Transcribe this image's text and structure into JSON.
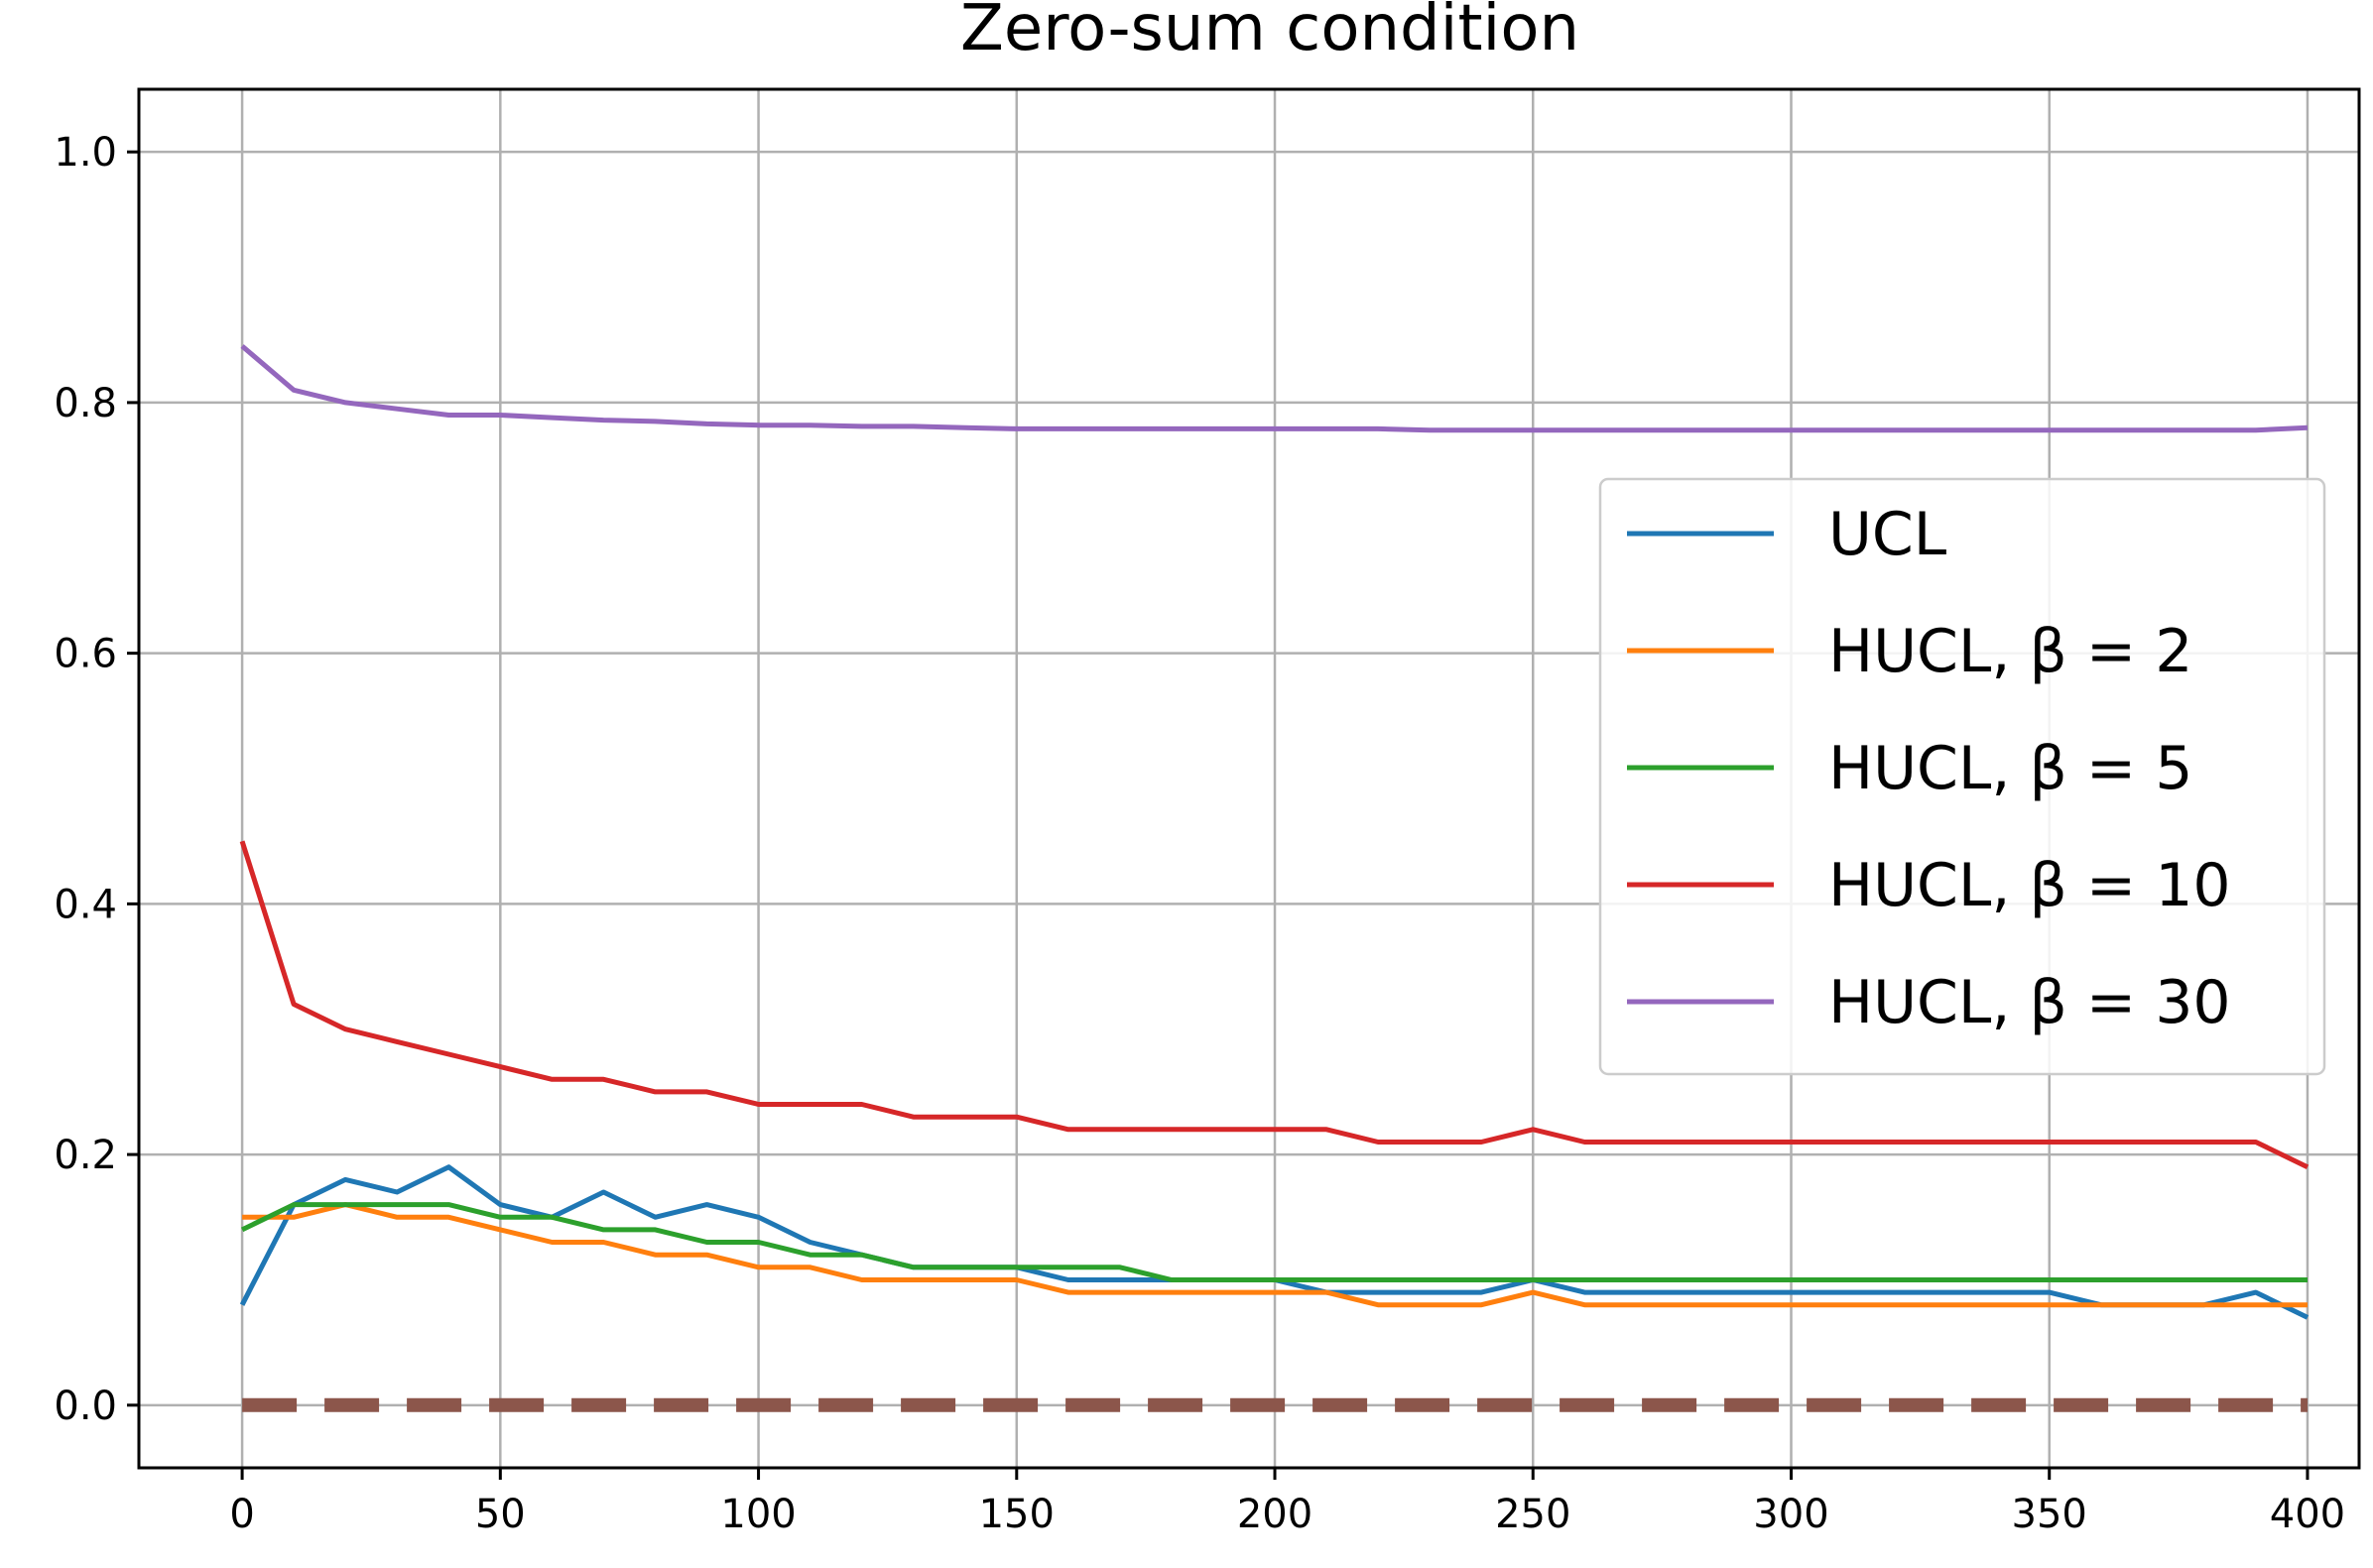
{
  "chart_data": {
    "type": "line",
    "title": "Zero-sum condition",
    "xlabel": "",
    "ylabel": "",
    "xlim": [
      -20,
      410
    ],
    "ylim": [
      -0.05,
      1.05
    ],
    "grid": true,
    "legend_placement": "center-right",
    "x_ticks": [
      0,
      50,
      100,
      150,
      200,
      250,
      300,
      350,
      400
    ],
    "y_ticks": [
      0.0,
      0.2,
      0.4,
      0.6,
      0.8,
      1.0
    ],
    "x_tick_labels": [
      "0",
      "50",
      "100",
      "150",
      "200",
      "250",
      "300",
      "350",
      "400"
    ],
    "y_tick_labels": [
      "0.0",
      "0.2",
      "0.4",
      "0.6",
      "0.8",
      "1.0"
    ],
    "x": [
      0,
      10,
      20,
      30,
      40,
      50,
      60,
      70,
      80,
      90,
      100,
      110,
      120,
      130,
      140,
      150,
      160,
      170,
      180,
      190,
      200,
      210,
      220,
      230,
      240,
      250,
      260,
      270,
      280,
      290,
      300,
      310,
      320,
      330,
      340,
      350,
      360,
      370,
      380,
      390,
      400
    ],
    "series": [
      {
        "name": "UCL",
        "legend_label": "UCL",
        "color": "#1f77b4",
        "values": [
          0.08,
          0.16,
          0.18,
          0.17,
          0.19,
          0.16,
          0.15,
          0.17,
          0.15,
          0.16,
          0.15,
          0.13,
          0.12,
          0.11,
          0.11,
          0.11,
          0.1,
          0.1,
          0.1,
          0.1,
          0.1,
          0.09,
          0.09,
          0.09,
          0.09,
          0.1,
          0.09,
          0.09,
          0.09,
          0.09,
          0.09,
          0.09,
          0.09,
          0.09,
          0.09,
          0.09,
          0.08,
          0.08,
          0.08,
          0.09,
          0.07
        ]
      },
      {
        "name": "HUCL, β = 2",
        "legend_label": "HUCL, β = 2",
        "color": "#ff7f0e",
        "values": [
          0.15,
          0.15,
          0.16,
          0.15,
          0.15,
          0.14,
          0.13,
          0.13,
          0.12,
          0.12,
          0.11,
          0.11,
          0.1,
          0.1,
          0.1,
          0.1,
          0.09,
          0.09,
          0.09,
          0.09,
          0.09,
          0.09,
          0.08,
          0.08,
          0.08,
          0.09,
          0.08,
          0.08,
          0.08,
          0.08,
          0.08,
          0.08,
          0.08,
          0.08,
          0.08,
          0.08,
          0.08,
          0.08,
          0.08,
          0.08,
          0.08
        ]
      },
      {
        "name": "HUCL, β = 5",
        "legend_label": "HUCL, β = 5",
        "color": "#2ca02c",
        "values": [
          0.14,
          0.16,
          0.16,
          0.16,
          0.16,
          0.15,
          0.15,
          0.14,
          0.14,
          0.13,
          0.13,
          0.12,
          0.12,
          0.11,
          0.11,
          0.11,
          0.11,
          0.11,
          0.1,
          0.1,
          0.1,
          0.1,
          0.1,
          0.1,
          0.1,
          0.1,
          0.1,
          0.1,
          0.1,
          0.1,
          0.1,
          0.1,
          0.1,
          0.1,
          0.1,
          0.1,
          0.1,
          0.1,
          0.1,
          0.1,
          0.1
        ]
      },
      {
        "name": "HUCL, β = 10",
        "legend_label": "HUCL, β = 10",
        "color": "#d62728",
        "values": [
          0.45,
          0.32,
          0.3,
          0.29,
          0.28,
          0.27,
          0.26,
          0.26,
          0.25,
          0.25,
          0.24,
          0.24,
          0.24,
          0.23,
          0.23,
          0.23,
          0.22,
          0.22,
          0.22,
          0.22,
          0.22,
          0.22,
          0.21,
          0.21,
          0.21,
          0.22,
          0.21,
          0.21,
          0.21,
          0.21,
          0.21,
          0.21,
          0.21,
          0.21,
          0.21,
          0.21,
          0.21,
          0.21,
          0.21,
          0.21,
          0.19
        ]
      },
      {
        "name": "HUCL, β = 30",
        "legend_label": "HUCL, β = 30",
        "color": "#9467bd",
        "values": [
          0.845,
          0.81,
          0.8,
          0.795,
          0.79,
          0.79,
          0.788,
          0.786,
          0.785,
          0.783,
          0.782,
          0.782,
          0.781,
          0.781,
          0.78,
          0.779,
          0.779,
          0.779,
          0.779,
          0.779,
          0.779,
          0.779,
          0.779,
          0.778,
          0.778,
          0.778,
          0.778,
          0.778,
          0.778,
          0.778,
          0.778,
          0.778,
          0.778,
          0.778,
          0.778,
          0.778,
          0.778,
          0.778,
          0.778,
          0.778,
          0.78
        ]
      },
      {
        "name": "",
        "color": "#8c564b",
        "dashed": true,
        "values": [
          0.0,
          0.0,
          0.0,
          0.0,
          0.0,
          0.0,
          0.0,
          0.0,
          0.0,
          0.0,
          0.0,
          0.0,
          0.0,
          0.0,
          0.0,
          0.0,
          0.0,
          0.0,
          0.0,
          0.0,
          0.0,
          0.0,
          0.0,
          0.0,
          0.0,
          0.0,
          0.0,
          0.0,
          0.0,
          0.0,
          0.0,
          0.0,
          0.0,
          0.0,
          0.0,
          0.0,
          0.0,
          0.0,
          0.0,
          0.0,
          0.0
        ]
      }
    ]
  }
}
